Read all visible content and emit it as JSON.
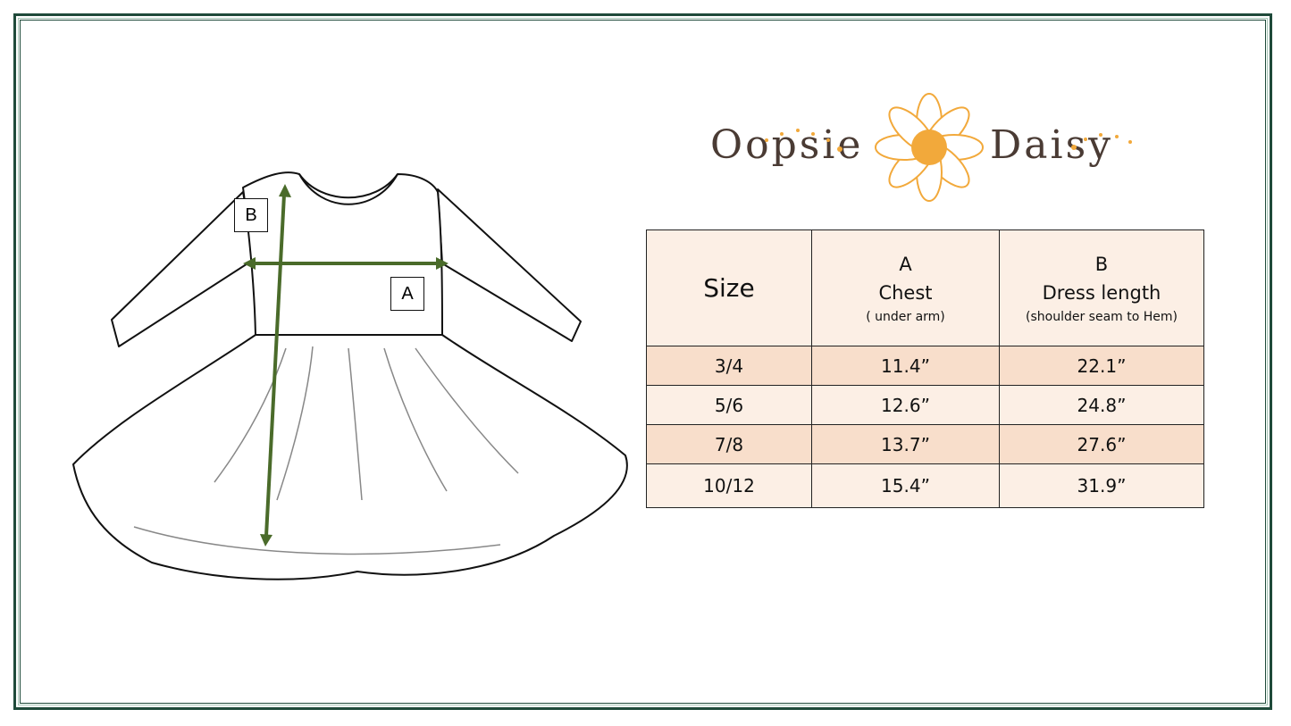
{
  "brand": {
    "name_left": "Oopsie",
    "name_right": "Daisy"
  },
  "diagram": {
    "label_a": "A",
    "label_b": "B",
    "arrow_color": "#4a6b2a"
  },
  "table": {
    "headers": [
      {
        "title": "Size"
      },
      {
        "letter": "A",
        "title": "Chest",
        "note": "( under arm)"
      },
      {
        "letter": "B",
        "title": "Dress length",
        "note": "(shoulder seam to Hem)"
      }
    ],
    "rows": [
      [
        "3/4",
        "11.4”",
        "22.1”"
      ],
      [
        "5/6",
        "12.6”",
        "24.8”"
      ],
      [
        "7/8",
        "13.7”",
        "27.6”"
      ],
      [
        "10/12",
        "15.4”",
        "31.9”"
      ]
    ]
  },
  "colors": {
    "border": "#1f4a3a",
    "row_dark": "#f8decb",
    "row_light": "#fcefe5",
    "logo_accent": "#f2a93b",
    "logo_text": "#4a3b34"
  }
}
